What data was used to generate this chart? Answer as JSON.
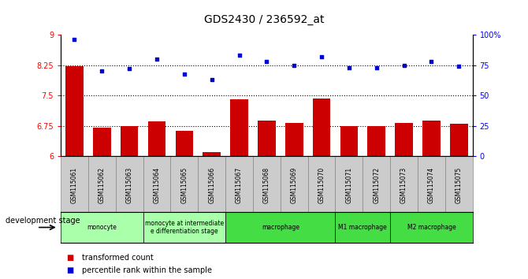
{
  "title": "GDS2430 / 236592_at",
  "samples": [
    "GSM115061",
    "GSM115062",
    "GSM115063",
    "GSM115064",
    "GSM115065",
    "GSM115066",
    "GSM115067",
    "GSM115068",
    "GSM115069",
    "GSM115070",
    "GSM115071",
    "GSM115072",
    "GSM115073",
    "GSM115074",
    "GSM115075"
  ],
  "bar_values": [
    8.22,
    6.7,
    6.75,
    6.87,
    6.63,
    6.1,
    7.4,
    6.88,
    6.83,
    7.43,
    6.75,
    6.75,
    6.83,
    6.88,
    6.8
  ],
  "scatter_values": [
    96,
    70,
    72,
    80,
    68,
    63,
    83,
    78,
    75,
    82,
    73,
    73,
    75,
    78,
    74
  ],
  "bar_color": "#cc0000",
  "scatter_color": "#0000cc",
  "ylim_left": [
    6,
    9
  ],
  "ylim_right": [
    0,
    100
  ],
  "yticks_left": [
    6,
    6.75,
    7.5,
    8.25,
    9
  ],
  "ytick_labels_left": [
    "6",
    "6.75",
    "7.5",
    "8.25",
    "9"
  ],
  "yticks_right": [
    0,
    25,
    50,
    75,
    100
  ],
  "ytick_labels_right": [
    "0",
    "25",
    "50",
    "75",
    "100%"
  ],
  "hlines": [
    6.75,
    7.5,
    8.25
  ],
  "stage_groups_text": [
    {
      "label": "monocyte",
      "start": 0,
      "end": 3,
      "color": "#aaffaa"
    },
    {
      "label": "monocyte at intermediate\ne differentiation stage",
      "start": 3,
      "end": 6,
      "color": "#aaffaa"
    },
    {
      "label": "macrophage",
      "start": 6,
      "end": 10,
      "color": "#44dd44"
    },
    {
      "label": "M1 macrophage",
      "start": 10,
      "end": 12,
      "color": "#44dd44"
    },
    {
      "label": "M2 macrophage",
      "start": 12,
      "end": 15,
      "color": "#44dd44"
    }
  ],
  "dev_stage_label": "development stage",
  "legend_items": [
    {
      "color": "#cc0000",
      "label": "transformed count"
    },
    {
      "color": "#0000cc",
      "label": "percentile rank within the sample"
    }
  ],
  "background_color": "#ffffff",
  "tick_label_bg": "#cccccc"
}
